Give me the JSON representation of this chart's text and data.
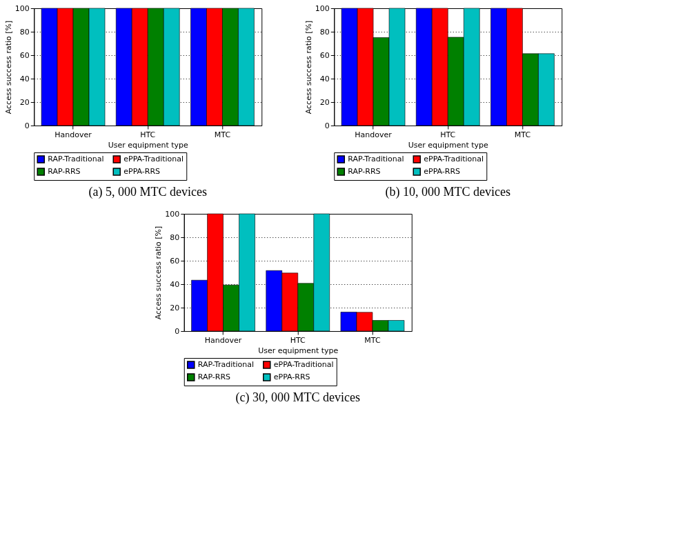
{
  "chart_data": [
    {
      "type": "bar",
      "title": "(a) 5, 000 MTC devices",
      "xlabel": "User equipment type",
      "ylabel": "Access success ratio [%]",
      "categories": [
        "Handover",
        "HTC",
        "MTC"
      ],
      "series": [
        {
          "name": "RAP-Traditional",
          "color": "#0000ff",
          "values": [
            100,
            100,
            100
          ]
        },
        {
          "name": "ePPA-Traditional",
          "color": "#ff0000",
          "values": [
            100,
            100,
            100
          ]
        },
        {
          "name": "RAP-RRS",
          "color": "#008000",
          "values": [
            100,
            100,
            100
          ]
        },
        {
          "name": "ePPA-RRS",
          "color": "#00bfbf",
          "values": [
            100,
            100,
            100
          ]
        }
      ],
      "ylim": [
        0,
        100
      ],
      "yticks": [
        0,
        20,
        40,
        60,
        80,
        100
      ],
      "grid": "y",
      "legend": "bottom"
    },
    {
      "type": "bar",
      "title": "(b) 10, 000 MTC devices",
      "xlabel": "User equipment type",
      "ylabel": "Access success ratio [%]",
      "categories": [
        "Handover",
        "HTC",
        "MTC"
      ],
      "series": [
        {
          "name": "RAP-Traditional",
          "color": "#0000ff",
          "values": [
            100,
            100,
            100
          ]
        },
        {
          "name": "ePPA-Traditional",
          "color": "#ff0000",
          "values": [
            100,
            100,
            100
          ]
        },
        {
          "name": "RAP-RRS",
          "color": "#008000",
          "values": [
            75,
            75.3,
            61.3
          ]
        },
        {
          "name": "ePPA-RRS",
          "color": "#00bfbf",
          "values": [
            100,
            100,
            61.3
          ]
        }
      ],
      "ylim": [
        0,
        100
      ],
      "yticks": [
        0,
        20,
        40,
        60,
        80,
        100
      ],
      "grid": "y",
      "legend": "bottom"
    },
    {
      "type": "bar",
      "title": "(c) 30, 000 MTC devices",
      "xlabel": "User equipment type",
      "ylabel": "Access success ratio [%]",
      "categories": [
        "Handover",
        "HTC",
        "MTC"
      ],
      "series": [
        {
          "name": "RAP-Traditional",
          "color": "#0000ff",
          "values": [
            43.4,
            51.6,
            16.2
          ]
        },
        {
          "name": "ePPA-Traditional",
          "color": "#ff0000",
          "values": [
            100,
            49.5,
            16
          ]
        },
        {
          "name": "RAP-RRS",
          "color": "#008000",
          "values": [
            39.3,
            40.7,
            9.1
          ]
        },
        {
          "name": "ePPA-RRS",
          "color": "#00bfbf",
          "values": [
            100,
            100,
            9.1
          ]
        }
      ],
      "ylim": [
        0,
        100
      ],
      "yticks": [
        0,
        20,
        40,
        60,
        80,
        100
      ],
      "grid": "y",
      "legend": "bottom"
    }
  ]
}
